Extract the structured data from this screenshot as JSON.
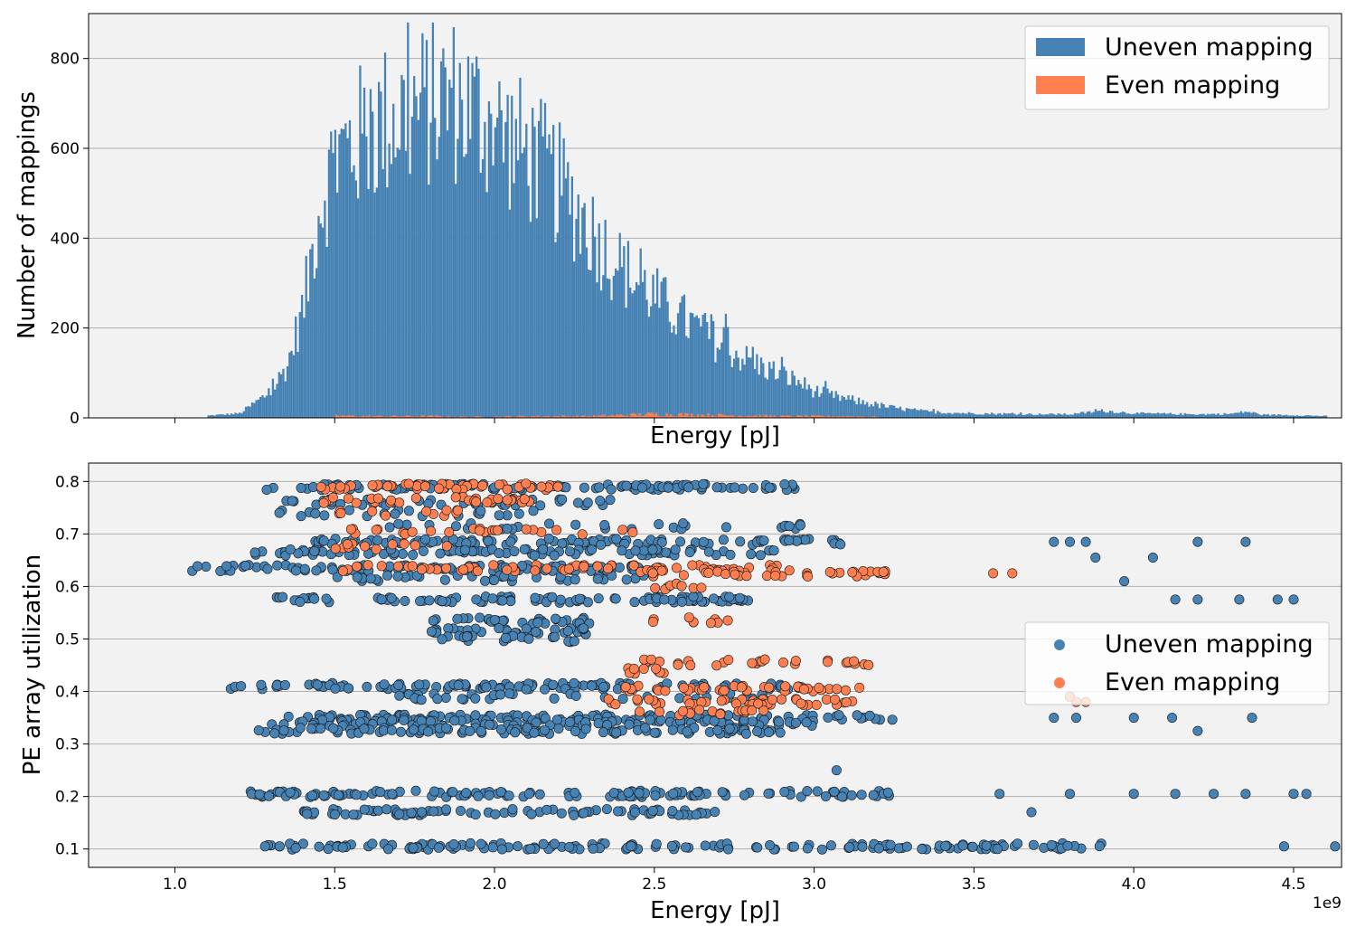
{
  "chart_data": [
    {
      "type": "bar",
      "subtype": "histogram",
      "xlabel": "Energy [pJ]",
      "ylabel": "Number of mappings",
      "xlim": [
        0.73,
        4.65
      ],
      "ylim": [
        0,
        900
      ],
      "x_scale_note": "1e9",
      "yticks": [
        0,
        200,
        400,
        600,
        800
      ],
      "ytick_labels": [
        "0",
        "200",
        "400",
        "600",
        "800"
      ],
      "xticks": [
        1.0,
        1.5,
        2.0,
        2.5,
        3.0,
        3.5,
        4.0,
        4.5
      ],
      "grid": "y",
      "legend_position": "top-right",
      "series": [
        {
          "name": "Uneven mapping",
          "color": "#4682b4",
          "bin_centers": [
            1.1,
            1.2,
            1.3,
            1.35,
            1.4,
            1.45,
            1.5,
            1.55,
            1.6,
            1.65,
            1.7,
            1.75,
            1.8,
            1.85,
            1.9,
            1.95,
            2.0,
            2.05,
            2.1,
            2.15,
            2.2,
            2.25,
            2.3,
            2.35,
            2.4,
            2.45,
            2.5,
            2.55,
            2.6,
            2.65,
            2.7,
            2.75,
            2.8,
            2.85,
            2.9,
            2.95,
            3.0,
            3.05,
            3.1,
            3.15,
            3.2,
            3.25,
            3.3,
            3.35,
            3.4,
            3.5,
            3.6,
            3.7,
            3.8,
            3.9,
            4.0,
            4.1,
            4.2,
            4.3,
            4.35,
            4.4,
            4.5,
            4.6
          ],
          "values": [
            5,
            10,
            60,
            120,
            250,
            480,
            580,
            610,
            640,
            660,
            680,
            690,
            700,
            720,
            700,
            680,
            650,
            620,
            590,
            560,
            520,
            470,
            420,
            370,
            330,
            300,
            270,
            240,
            215,
            190,
            165,
            145,
            125,
            110,
            95,
            80,
            60,
            50,
            42,
            35,
            28,
            22,
            18,
            14,
            12,
            10,
            9,
            8,
            8,
            16,
            10,
            9,
            8,
            9,
            14,
            7,
            6,
            4
          ]
        },
        {
          "name": "Even mapping",
          "color": "#ff7f50",
          "bin_centers": [
            1.5,
            1.6,
            1.7,
            1.8,
            1.9,
            2.0,
            2.1,
            2.2,
            2.3,
            2.4,
            2.5,
            2.6,
            2.7,
            2.8,
            2.9,
            3.0,
            3.1,
            3.2
          ],
          "values": [
            4,
            3,
            3,
            3,
            2,
            2,
            3,
            3,
            3,
            5,
            7,
            6,
            5,
            4,
            3,
            3,
            3,
            2
          ]
        }
      ]
    },
    {
      "type": "scatter",
      "xlabel": "Energy [pJ]",
      "ylabel": "PE array utilization",
      "xlim": [
        0.73,
        4.65
      ],
      "ylim": [
        0.065,
        0.835
      ],
      "x_scale_note": "1e9",
      "xticks": [
        1.0,
        1.5,
        2.0,
        2.5,
        3.0,
        3.5,
        4.0,
        4.5
      ],
      "xtick_labels": [
        "1.0",
        "1.5",
        "2.0",
        "2.5",
        "3.0",
        "3.5",
        "4.0",
        "4.5"
      ],
      "yticks": [
        0.1,
        0.2,
        0.3,
        0.4,
        0.5,
        0.6,
        0.7,
        0.8
      ],
      "ytick_labels": [
        "0.1",
        "0.2",
        "0.3",
        "0.4",
        "0.5",
        "0.6",
        "0.7",
        "0.8"
      ],
      "offset_text": "1e9",
      "grid": "y",
      "legend_position": "center-right",
      "series": [
        {
          "name": "Uneven mapping",
          "color": "#4682b4",
          "bands": [
            {
              "y": 0.79,
              "x_range": [
                1.28,
                2.94
              ],
              "density": 0.9
            },
            {
              "y": 0.76,
              "x_range": [
                1.3,
                2.4
              ],
              "density": 0.5
            },
            {
              "y": 0.74,
              "x_range": [
                1.3,
                2.2
              ],
              "density": 0.3
            },
            {
              "y": 0.715,
              "x_range": [
                1.5,
                3.0
              ],
              "density": 0.25
            },
            {
              "y": 0.685,
              "x_range": [
                1.42,
                3.1
              ],
              "density": 0.9
            },
            {
              "y": 0.665,
              "x_range": [
                1.25,
                2.9
              ],
              "density": 0.8
            },
            {
              "y": 0.635,
              "x_range": [
                1.05,
                2.5
              ],
              "density": 0.9
            },
            {
              "y": 0.615,
              "x_range": [
                1.5,
                2.5
              ],
              "density": 0.5
            },
            {
              "y": 0.575,
              "x_range": [
                1.28,
                2.8
              ],
              "density": 0.9
            },
            {
              "y": 0.535,
              "x_range": [
                1.8,
                2.3
              ],
              "density": 0.8
            },
            {
              "y": 0.515,
              "x_range": [
                1.8,
                2.3
              ],
              "density": 0.8
            },
            {
              "y": 0.5,
              "x_range": [
                1.8,
                2.25
              ],
              "density": 0.6
            },
            {
              "y": 0.41,
              "x_range": [
                1.15,
                3.0
              ],
              "density": 0.9
            },
            {
              "y": 0.39,
              "x_range": [
                1.7,
                2.9
              ],
              "density": 0.4
            },
            {
              "y": 0.35,
              "x_range": [
                1.35,
                3.25
              ],
              "density": 0.8
            },
            {
              "y": 0.34,
              "x_range": [
                1.3,
                3.0
              ],
              "density": 0.8
            },
            {
              "y": 0.325,
              "x_range": [
                1.24,
                2.9
              ],
              "density": 0.9
            },
            {
              "y": 0.205,
              "x_range": [
                1.22,
                3.25
              ],
              "density": 0.9
            },
            {
              "y": 0.17,
              "x_range": [
                1.4,
                2.7
              ],
              "density": 0.9
            },
            {
              "y": 0.105,
              "x_range": [
                1.28,
                3.9
              ],
              "density": 0.9
            }
          ],
          "outliers": [
            [
              3.07,
              0.25
            ],
            [
              3.75,
              0.685
            ],
            [
              3.8,
              0.685
            ],
            [
              3.85,
              0.685
            ],
            [
              4.2,
              0.685
            ],
            [
              4.35,
              0.685
            ],
            [
              3.88,
              0.655
            ],
            [
              4.06,
              0.655
            ],
            [
              3.97,
              0.61
            ],
            [
              4.13,
              0.575
            ],
            [
              4.2,
              0.575
            ],
            [
              4.33,
              0.575
            ],
            [
              4.45,
              0.575
            ],
            [
              4.5,
              0.575
            ],
            [
              3.75,
              0.35
            ],
            [
              3.82,
              0.35
            ],
            [
              4.0,
              0.35
            ],
            [
              4.12,
              0.35
            ],
            [
              4.2,
              0.325
            ],
            [
              4.37,
              0.35
            ],
            [
              3.58,
              0.205
            ],
            [
              3.8,
              0.205
            ],
            [
              4.0,
              0.205
            ],
            [
              4.13,
              0.205
            ],
            [
              4.25,
              0.205
            ],
            [
              4.35,
              0.205
            ],
            [
              4.5,
              0.205
            ],
            [
              4.54,
              0.205
            ],
            [
              4.47,
              0.105
            ],
            [
              4.63,
              0.105
            ],
            [
              3.68,
              0.17
            ]
          ]
        },
        {
          "name": "Even mapping",
          "color": "#ff7f50",
          "bands": [
            {
              "y": 0.79,
              "x_range": [
                1.45,
                2.2
              ],
              "density": 0.9
            },
            {
              "y": 0.765,
              "x_range": [
                1.45,
                2.15
              ],
              "density": 0.6
            },
            {
              "y": 0.74,
              "x_range": [
                1.5,
                1.9
              ],
              "density": 0.3
            },
            {
              "y": 0.705,
              "x_range": [
                1.5,
                2.5
              ],
              "density": 0.3
            },
            {
              "y": 0.675,
              "x_range": [
                1.5,
                1.9
              ],
              "density": 0.3
            },
            {
              "y": 0.635,
              "x_range": [
                1.5,
                2.9
              ],
              "density": 0.6
            },
            {
              "y": 0.625,
              "x_range": [
                2.45,
                3.25
              ],
              "density": 0.7
            },
            {
              "y": 0.6,
              "x_range": [
                2.5,
                2.65
              ],
              "density": 0.6
            },
            {
              "y": 0.535,
              "x_range": [
                2.45,
                2.85
              ],
              "density": 0.2
            },
            {
              "y": 0.455,
              "x_range": [
                2.45,
                3.2
              ],
              "density": 0.5
            },
            {
              "y": 0.44,
              "x_range": [
                2.4,
                2.55
              ],
              "density": 0.6
            },
            {
              "y": 0.405,
              "x_range": [
                2.4,
                3.15
              ],
              "density": 0.7
            },
            {
              "y": 0.38,
              "x_range": [
                2.35,
                3.15
              ],
              "density": 0.8
            },
            {
              "y": 0.36,
              "x_range": [
                2.45,
                2.85
              ],
              "density": 0.5
            }
          ],
          "outliers": [
            [
              3.56,
              0.625
            ],
            [
              3.62,
              0.625
            ],
            [
              3.82,
              0.38
            ],
            [
              3.85,
              0.38
            ],
            [
              3.8,
              0.39
            ]
          ]
        }
      ]
    }
  ],
  "legend": {
    "uneven_label": "Uneven mapping",
    "even_label": "Even mapping"
  },
  "axes": {
    "top_xlabel": "Energy [pJ]",
    "top_ylabel": "Number of mappings",
    "bottom_xlabel": "Energy [pJ]",
    "bottom_ylabel": "PE array utilization",
    "offset_text": "1e9"
  }
}
